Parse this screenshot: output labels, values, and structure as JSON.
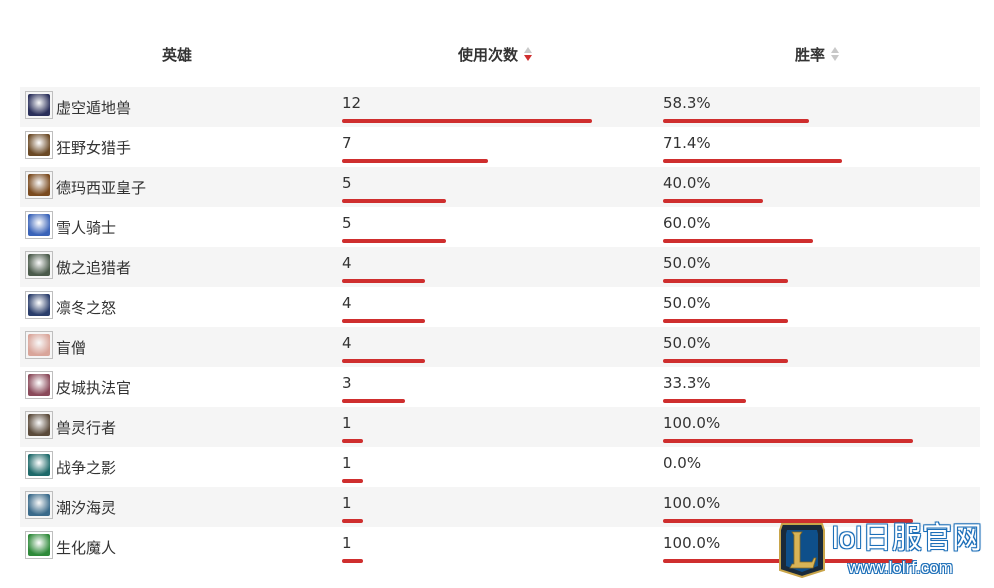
{
  "header": {
    "hero": "英雄",
    "count": "使用次数",
    "winrate": "胜率"
  },
  "colors": {
    "bar": "#cf2e2e",
    "row_alt": "#f5f5f5",
    "sort_active": "#cf2e2e",
    "sort_inactive": "#c8c8c8"
  },
  "rows": [
    {
      "name": "虚空遁地兽",
      "count": "12",
      "count_value": 12,
      "winrate": "58.3%",
      "winrate_value": 58.3,
      "avatar_icon": "rek-sai-portrait-icon",
      "avatar_color": "#2a2f5a"
    },
    {
      "name": "狂野女猎手",
      "count": "7",
      "count_value": 7,
      "winrate": "71.4%",
      "winrate_value": 71.4,
      "avatar_icon": "nidalee-portrait-icon",
      "avatar_color": "#6b4a26"
    },
    {
      "name": "德玛西亚皇子",
      "count": "5",
      "count_value": 5,
      "winrate": "40.0%",
      "winrate_value": 40.0,
      "avatar_icon": "jarvan-portrait-icon",
      "avatar_color": "#7a4a1e"
    },
    {
      "name": "雪人骑士",
      "count": "5",
      "count_value": 5,
      "winrate": "60.0%",
      "winrate_value": 60.0,
      "avatar_icon": "nunu-portrait-icon",
      "avatar_color": "#3a63b8"
    },
    {
      "name": "傲之追猎者",
      "count": "4",
      "count_value": 4,
      "winrate": "50.0%",
      "winrate_value": 50.0,
      "avatar_icon": "rengar-portrait-icon",
      "avatar_color": "#4a5a4a"
    },
    {
      "name": "凛冬之怒",
      "count": "4",
      "count_value": 4,
      "winrate": "50.0%",
      "winrate_value": 50.0,
      "avatar_icon": "sejuani-portrait-icon",
      "avatar_color": "#2b3e6b"
    },
    {
      "name": "盲僧",
      "count": "4",
      "count_value": 4,
      "winrate": "50.0%",
      "winrate_value": 50.0,
      "avatar_icon": "lee-sin-portrait-icon",
      "avatar_color": "#d9a59a"
    },
    {
      "name": "皮城执法官",
      "count": "3",
      "count_value": 3,
      "winrate": "33.3%",
      "winrate_value": 33.3,
      "avatar_icon": "vi-portrait-icon",
      "avatar_color": "#8a4a5a"
    },
    {
      "name": "兽灵行者",
      "count": "1",
      "count_value": 1,
      "winrate": "100.0%",
      "winrate_value": 100.0,
      "avatar_icon": "udyr-portrait-icon",
      "avatar_color": "#5a4a3a"
    },
    {
      "name": "战争之影",
      "count": "1",
      "count_value": 1,
      "winrate": "0.0%",
      "winrate_value": 0.0,
      "avatar_icon": "hecarim-portrait-icon",
      "avatar_color": "#1f6a6a"
    },
    {
      "name": "潮汐海灵",
      "count": "1",
      "count_value": 1,
      "winrate": "100.0%",
      "winrate_value": 100.0,
      "avatar_icon": "fizz-portrait-icon",
      "avatar_color": "#3a6a8a"
    },
    {
      "name": "生化魔人",
      "count": "1",
      "count_value": 1,
      "winrate": "100.0%",
      "winrate_value": 100.0,
      "avatar_icon": "zac-portrait-icon",
      "avatar_color": "#2f8a3a"
    }
  ],
  "watermark": {
    "title": "lol日服官网",
    "url": "www.lolrf.com",
    "icon": "league-logo-icon"
  }
}
